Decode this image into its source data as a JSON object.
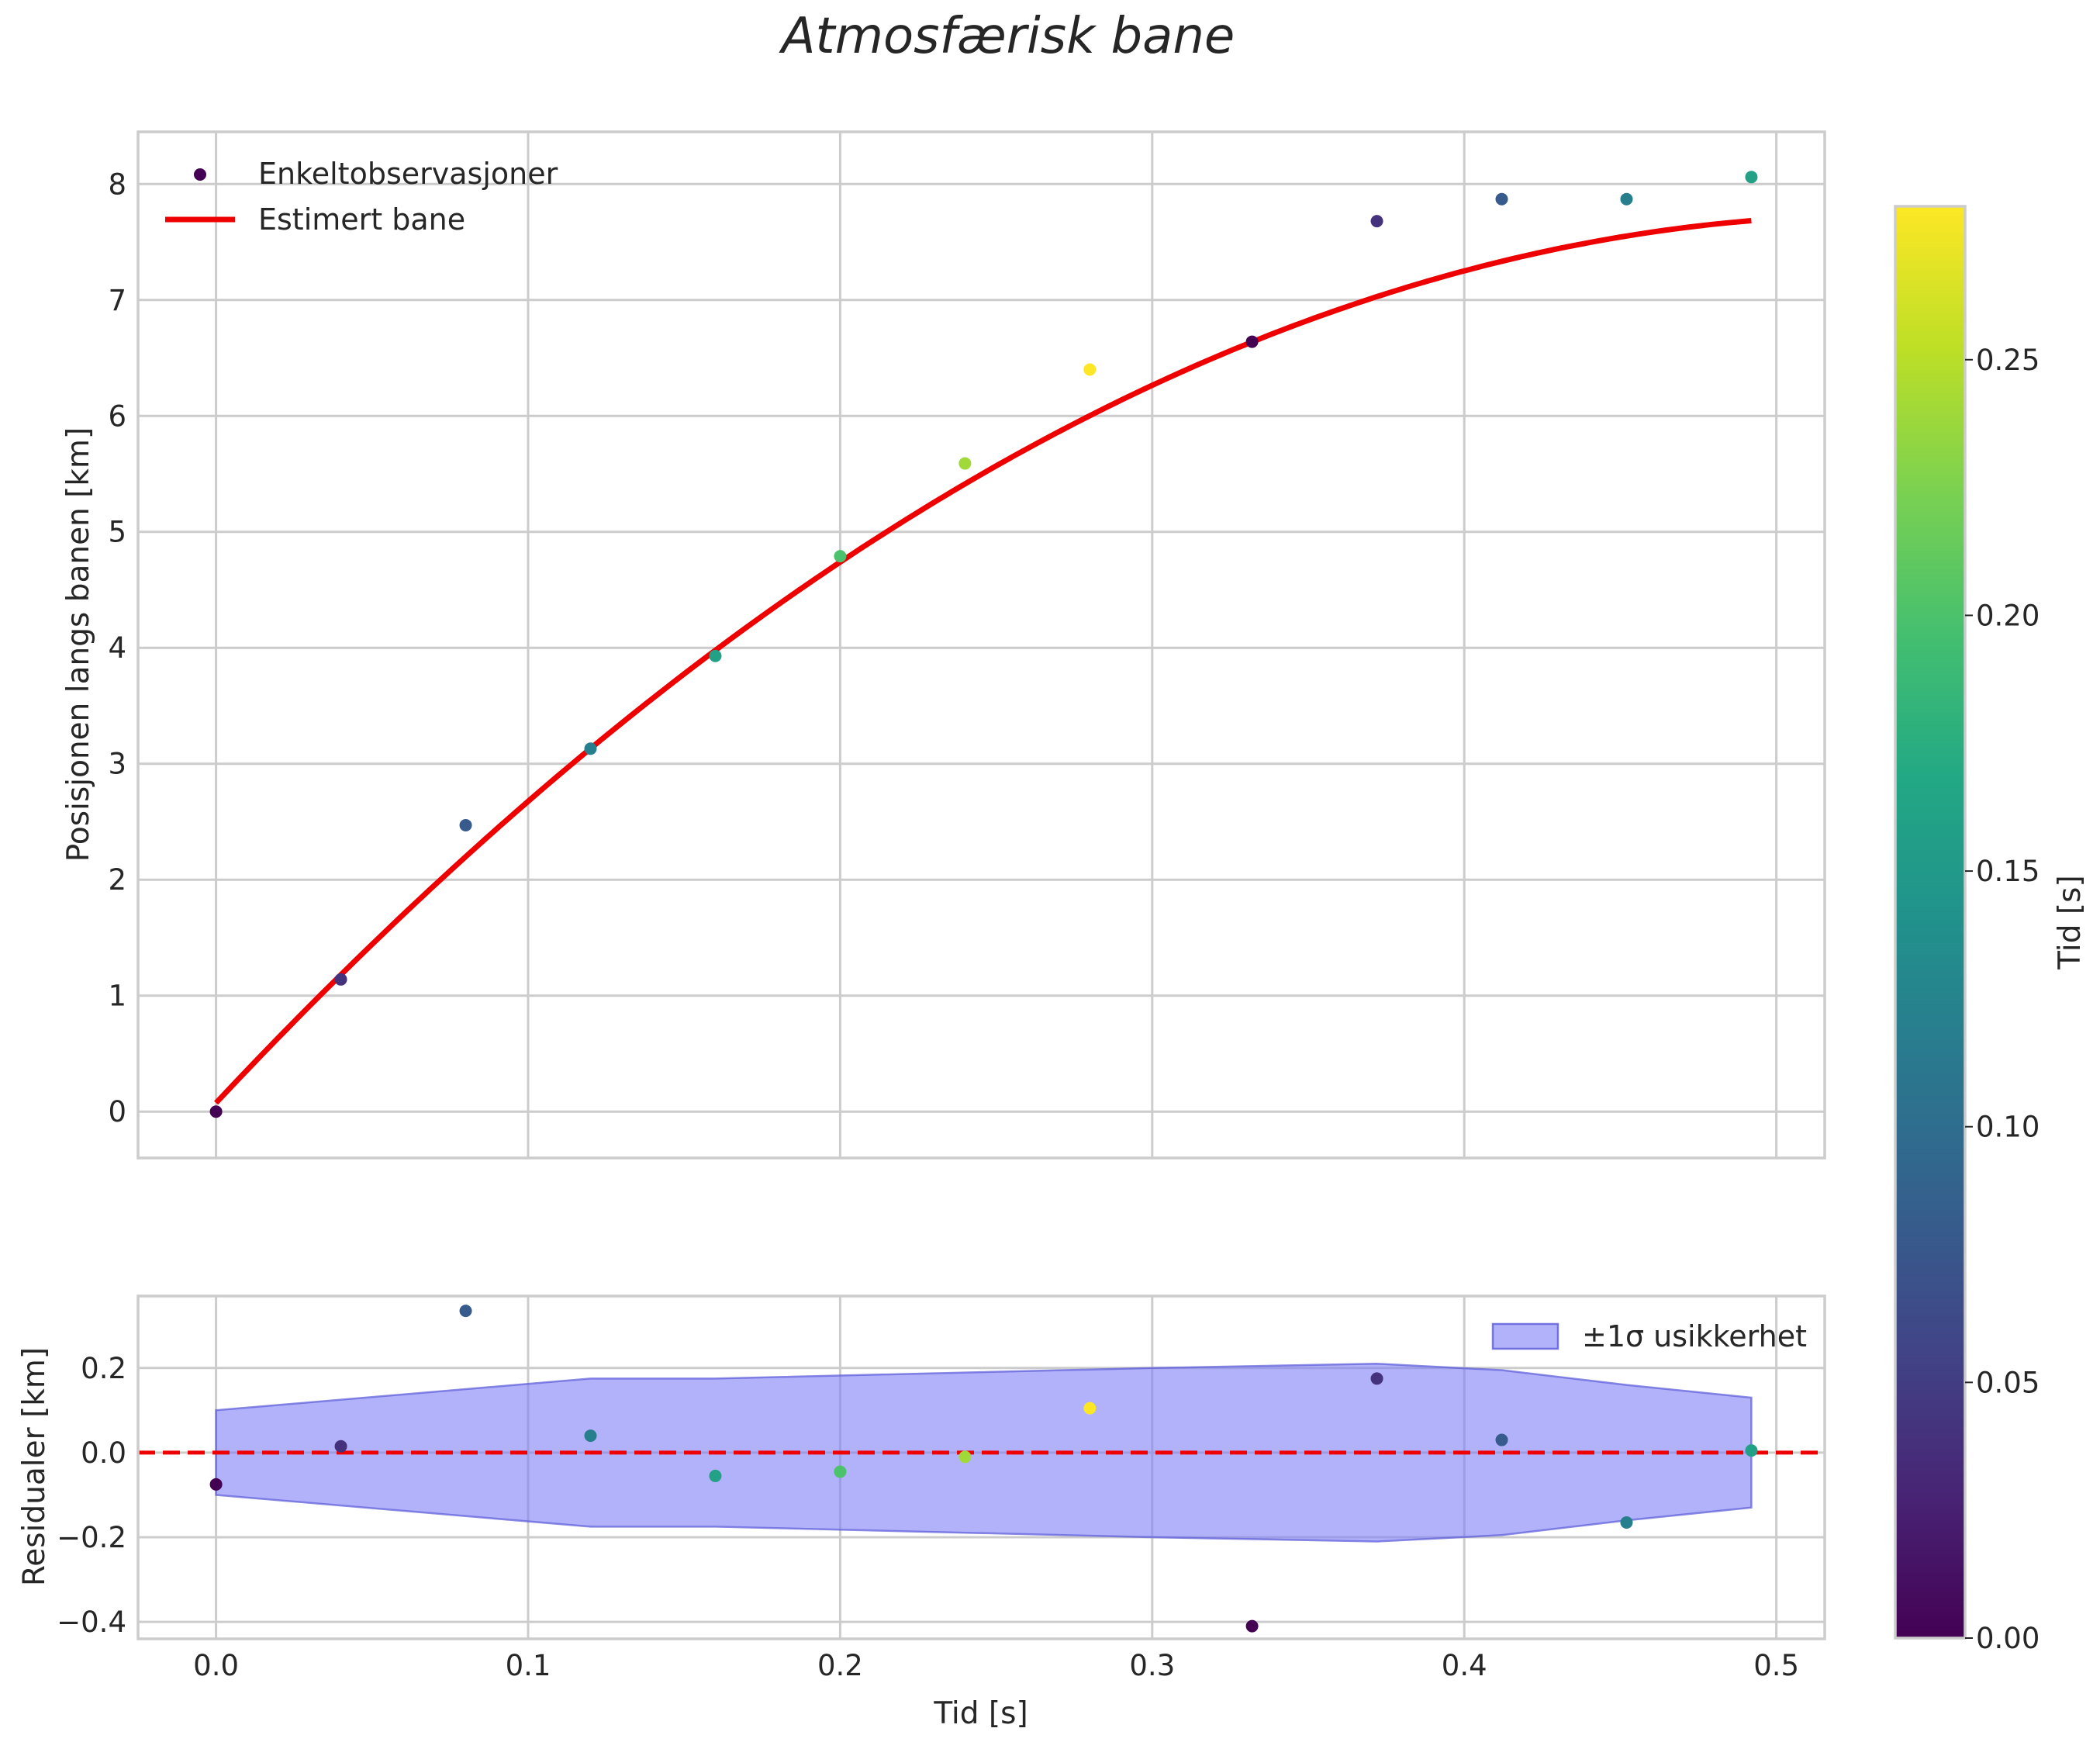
{
  "title": "Atmosfærisk bane",
  "chart_data": [
    {
      "type": "scatter",
      "title": "Atmosfærisk bane",
      "xlabel": "",
      "ylabel": "Posisjonen langs banen [km]",
      "xlim": [
        -0.025,
        0.5155
      ],
      "ylim": [
        -0.4,
        8.45
      ],
      "xticks": [
        0.0,
        0.1,
        0.2,
        0.3,
        0.4,
        0.5
      ],
      "yticks": [
        0,
        1,
        2,
        3,
        4,
        5,
        6,
        7,
        8
      ],
      "ytick_labels": [
        "0",
        "1",
        "2",
        "3",
        "4",
        "5",
        "6",
        "7",
        "8"
      ],
      "grid": true,
      "legend_position": "upper-left",
      "series": [
        {
          "name": "Enkeltobservasjoner",
          "kind": "scatter",
          "x": [
            0.0,
            0.04,
            0.08,
            0.12,
            0.16,
            0.2,
            0.24,
            0.28,
            0.332,
            0.372,
            0.412,
            0.452,
            0.492
          ],
          "y": [
            0.0,
            1.14,
            2.47,
            3.13,
            3.93,
            4.79,
            5.59,
            6.4,
            6.64,
            7.68,
            7.87,
            7.87,
            8.06
          ],
          "color_values": [
            0.0,
            0.04,
            0.08,
            0.12,
            0.16,
            0.2,
            0.24,
            0.28,
            0.0,
            0.04,
            0.08,
            0.12,
            0.16
          ]
        },
        {
          "name": "Estimert bane",
          "kind": "line",
          "color": "#ee0000",
          "fit": {
            "a": 0.075,
            "b": 28.7,
            "c": -26.9
          },
          "x_range": [
            0.0,
            0.492
          ]
        }
      ]
    },
    {
      "type": "scatter",
      "title": "",
      "xlabel": "Tid [s]",
      "ylabel": "Residualer [km]",
      "xlim": [
        -0.025,
        0.5155
      ],
      "ylim": [
        -0.44,
        0.37
      ],
      "xticks": [
        0.0,
        0.1,
        0.2,
        0.3,
        0.4,
        0.5
      ],
      "xtick_labels": [
        "0.0",
        "0.1",
        "0.2",
        "0.3",
        "0.4",
        "0.5"
      ],
      "yticks": [
        -0.4,
        -0.2,
        0.0,
        0.2
      ],
      "ytick_labels": [
        "−0.4",
        "−0.2",
        "0.0",
        "0.2"
      ],
      "grid": true,
      "legend_position": "upper-right",
      "zero_line_color": "#ee0000",
      "residuals": {
        "x": [
          0.0,
          0.04,
          0.08,
          0.12,
          0.16,
          0.2,
          0.24,
          0.28,
          0.332,
          0.372,
          0.412,
          0.452,
          0.492
        ],
        "y": [
          -0.075,
          0.015,
          0.335,
          0.04,
          -0.055,
          -0.045,
          -0.01,
          0.105,
          -0.41,
          0.175,
          0.03,
          -0.165,
          0.005
        ],
        "color_values": [
          0.0,
          0.04,
          0.08,
          0.12,
          0.16,
          0.2,
          0.24,
          0.28,
          0.0,
          0.04,
          0.08,
          0.12,
          0.16
        ]
      },
      "band": {
        "name": "±1σ usikkerhet",
        "color": "#7b7bf7",
        "x": [
          0.0,
          0.12,
          0.16,
          0.3,
          0.372,
          0.412,
          0.452,
          0.492
        ],
        "sigma": [
          0.1,
          0.175,
          0.175,
          0.2,
          0.21,
          0.195,
          0.16,
          0.13
        ]
      }
    }
  ],
  "colorbar": {
    "label": "Tid [s]",
    "range": [
      0.0,
      0.28
    ],
    "ticks": [
      0.0,
      0.05,
      0.1,
      0.15,
      0.2,
      0.25
    ],
    "tick_labels": [
      "0.00",
      "0.05",
      "0.10",
      "0.15",
      "0.20",
      "0.25"
    ],
    "colormap": "viridis"
  }
}
